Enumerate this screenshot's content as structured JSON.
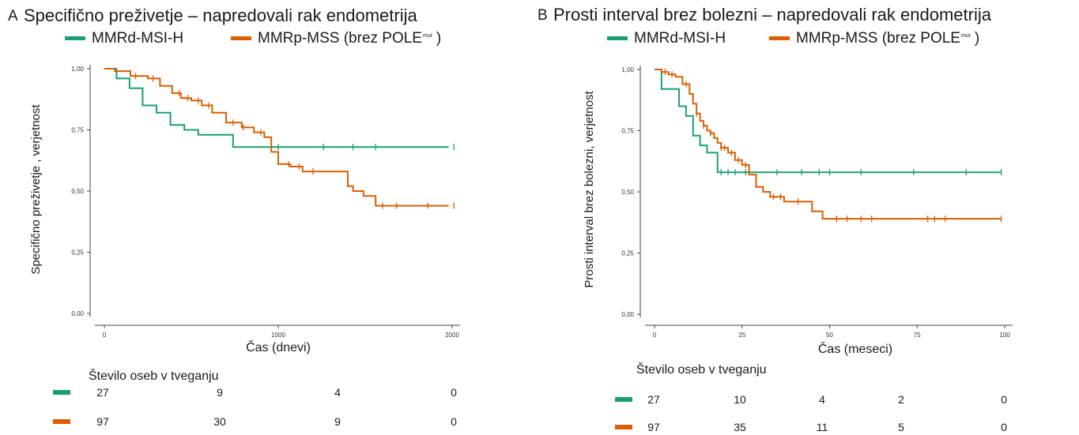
{
  "colors": {
    "msi": "#1b9e77",
    "mss": "#d95f02"
  },
  "panels": [
    {
      "letter": "A",
      "title": "Specifično preživetje – napredovali rak endometrija",
      "legend": [
        {
          "label": "MMRd-MSI-H",
          "sup": ""
        },
        {
          "label": "MMRp-MSS (brez POLE",
          "sup": "mut",
          "suffix": " )"
        }
      ],
      "chart_data": {
        "type": "line",
        "title": "Specifično preživetje – napredovali rak endometrija",
        "xlabel": "Čas (dnevi)",
        "ylabel": "Specifično preživetje , verjetnost",
        "xlim": [
          0,
          2000
        ],
        "ylim": [
          0,
          1
        ],
        "x_ticks": [
          0,
          1000,
          2000
        ],
        "x_tick_labels": [
          "0",
          "1000",
          "2000"
        ],
        "y_ticks": [
          0,
          0.25,
          0.5,
          0.75,
          1.0
        ],
        "y_tick_labels": [
          "0,00",
          "0,25",
          "0,50",
          "0,75",
          "1,00"
        ],
        "step": true,
        "grid": false,
        "legend_position": "top",
        "series": [
          {
            "name": "MMRd-MSI-H",
            "x": [
              0,
              70,
              145,
              220,
              300,
              380,
              460,
              540,
              740,
              1980
            ],
            "y": [
              1.0,
              0.96,
              0.92,
              0.85,
              0.82,
              0.77,
              0.75,
              0.73,
              0.68,
              0.68
            ],
            "censor_x": [
              1000,
              1260,
              1430,
              1560,
              2010
            ]
          },
          {
            "name": "MMRp-MSS (brez POLEmut )",
            "x": [
              0,
              60,
              150,
              250,
              320,
              390,
              440,
              500,
              560,
              620,
              700,
              790,
              860,
              920,
              960,
              1000,
              1070,
              1140,
              1400,
              1430,
              1490,
              1560,
              1980
            ],
            "y": [
              1.0,
              0.99,
              0.97,
              0.96,
              0.93,
              0.9,
              0.88,
              0.87,
              0.85,
              0.82,
              0.78,
              0.76,
              0.74,
              0.72,
              0.66,
              0.61,
              0.6,
              0.58,
              0.52,
              0.5,
              0.48,
              0.44,
              0.44
            ],
            "censor_x": [
              180,
              280,
              430,
              480,
              540,
              600,
              740,
              800,
              900,
              1060,
              1120,
              1200,
              1600,
              1680,
              1860,
              2010
            ]
          }
        ]
      },
      "risk_table": {
        "title": "Število oseb v tveganju",
        "rows": [
          {
            "values": [
              "27",
              "9",
              "4",
              "0"
            ]
          },
          {
            "values": [
              "97",
              "30",
              "9",
              "0"
            ]
          }
        ]
      }
    },
    {
      "letter": "B",
      "title": "Prosti interval brez bolezni – napredovali rak endometrija",
      "legend": [
        {
          "label": "MMRd-MSI-H",
          "sup": ""
        },
        {
          "label": "MMRp-MSS (brez POLE",
          "sup": "mut",
          "suffix": " )"
        }
      ],
      "chart_data": {
        "type": "line",
        "title": "Prosti interval brez bolezni – napredovali rak endometrija",
        "xlabel": "Čas (meseci)",
        "ylabel": "Prosti interval brez bolezni, verjetnost",
        "xlim": [
          0,
          100
        ],
        "ylim": [
          0,
          1
        ],
        "x_ticks": [
          0,
          25,
          50,
          75,
          100
        ],
        "x_tick_labels": [
          "0",
          "25",
          "50",
          "75",
          "100"
        ],
        "y_ticks": [
          0,
          0.25,
          0.5,
          0.75,
          1.0
        ],
        "y_tick_labels": [
          "0,00",
          "0,25",
          "0,50",
          "0,75",
          "1,00"
        ],
        "step": true,
        "grid": false,
        "legend_position": "top",
        "series": [
          {
            "name": "MMRd-MSI-H",
            "x": [
              0,
              2,
              7,
              9,
              11,
              13,
              15,
              18,
              99
            ],
            "y": [
              1.0,
              0.92,
              0.85,
              0.81,
              0.73,
              0.69,
              0.66,
              0.58,
              0.58
            ],
            "censor_x": [
              19,
              21,
              23,
              26,
              35,
              42,
              47,
              50,
              59,
              74,
              89,
              99
            ]
          },
          {
            "name": "MMRp-MSS (brez POLEmut )",
            "x": [
              0,
              2,
              4,
              6,
              8,
              10,
              11,
              12,
              13,
              14,
              15,
              16,
              17,
              18,
              19,
              21,
              23,
              25,
              27,
              29,
              31,
              33,
              37,
              45,
              48,
              99
            ],
            "y": [
              1.0,
              0.99,
              0.98,
              0.97,
              0.94,
              0.9,
              0.86,
              0.82,
              0.79,
              0.77,
              0.75,
              0.74,
              0.72,
              0.7,
              0.68,
              0.66,
              0.63,
              0.61,
              0.57,
              0.52,
              0.5,
              0.48,
              0.46,
              0.42,
              0.39,
              0.39
            ],
            "censor_x": [
              3,
              5,
              9,
              12,
              14,
              16,
              19,
              20,
              22,
              24,
              26,
              34,
              36,
              41,
              52,
              55,
              59,
              62,
              78,
              80,
              83,
              99
            ]
          }
        ]
      },
      "risk_table": {
        "title": "Število oseb v tveganju",
        "rows": [
          {
            "values": [
              "27",
              "10",
              "4",
              "2",
              "0"
            ]
          },
          {
            "values": [
              "97",
              "35",
              "11",
              "5",
              "0"
            ]
          }
        ]
      }
    }
  ]
}
